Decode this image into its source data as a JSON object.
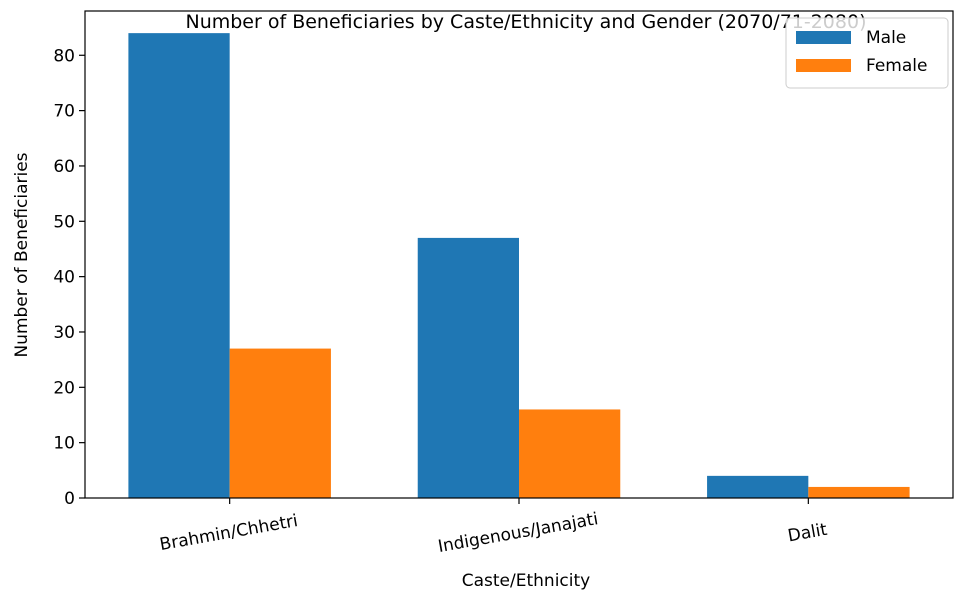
{
  "chart_data": {
    "type": "bar",
    "title": "Number of Beneficiaries by Caste/Ethnicity and Gender (2070/71-2080)",
    "xlabel": "Caste/Ethnicity",
    "ylabel": "Number of Beneficiaries",
    "categories": [
      "Brahmin/Chhetri",
      "Indigenous/Janajati",
      "Dalit"
    ],
    "series": [
      {
        "name": "Male",
        "values": [
          84,
          47,
          4
        ],
        "color": "#1f77b4"
      },
      {
        "name": "Female",
        "values": [
          27,
          16,
          2
        ],
        "color": "#ff7f0e"
      }
    ],
    "ylim": [
      0,
      88
    ],
    "yticks": [
      0,
      10,
      20,
      30,
      40,
      50,
      60,
      70,
      80
    ],
    "grid": false,
    "legend_position": "top-right"
  }
}
